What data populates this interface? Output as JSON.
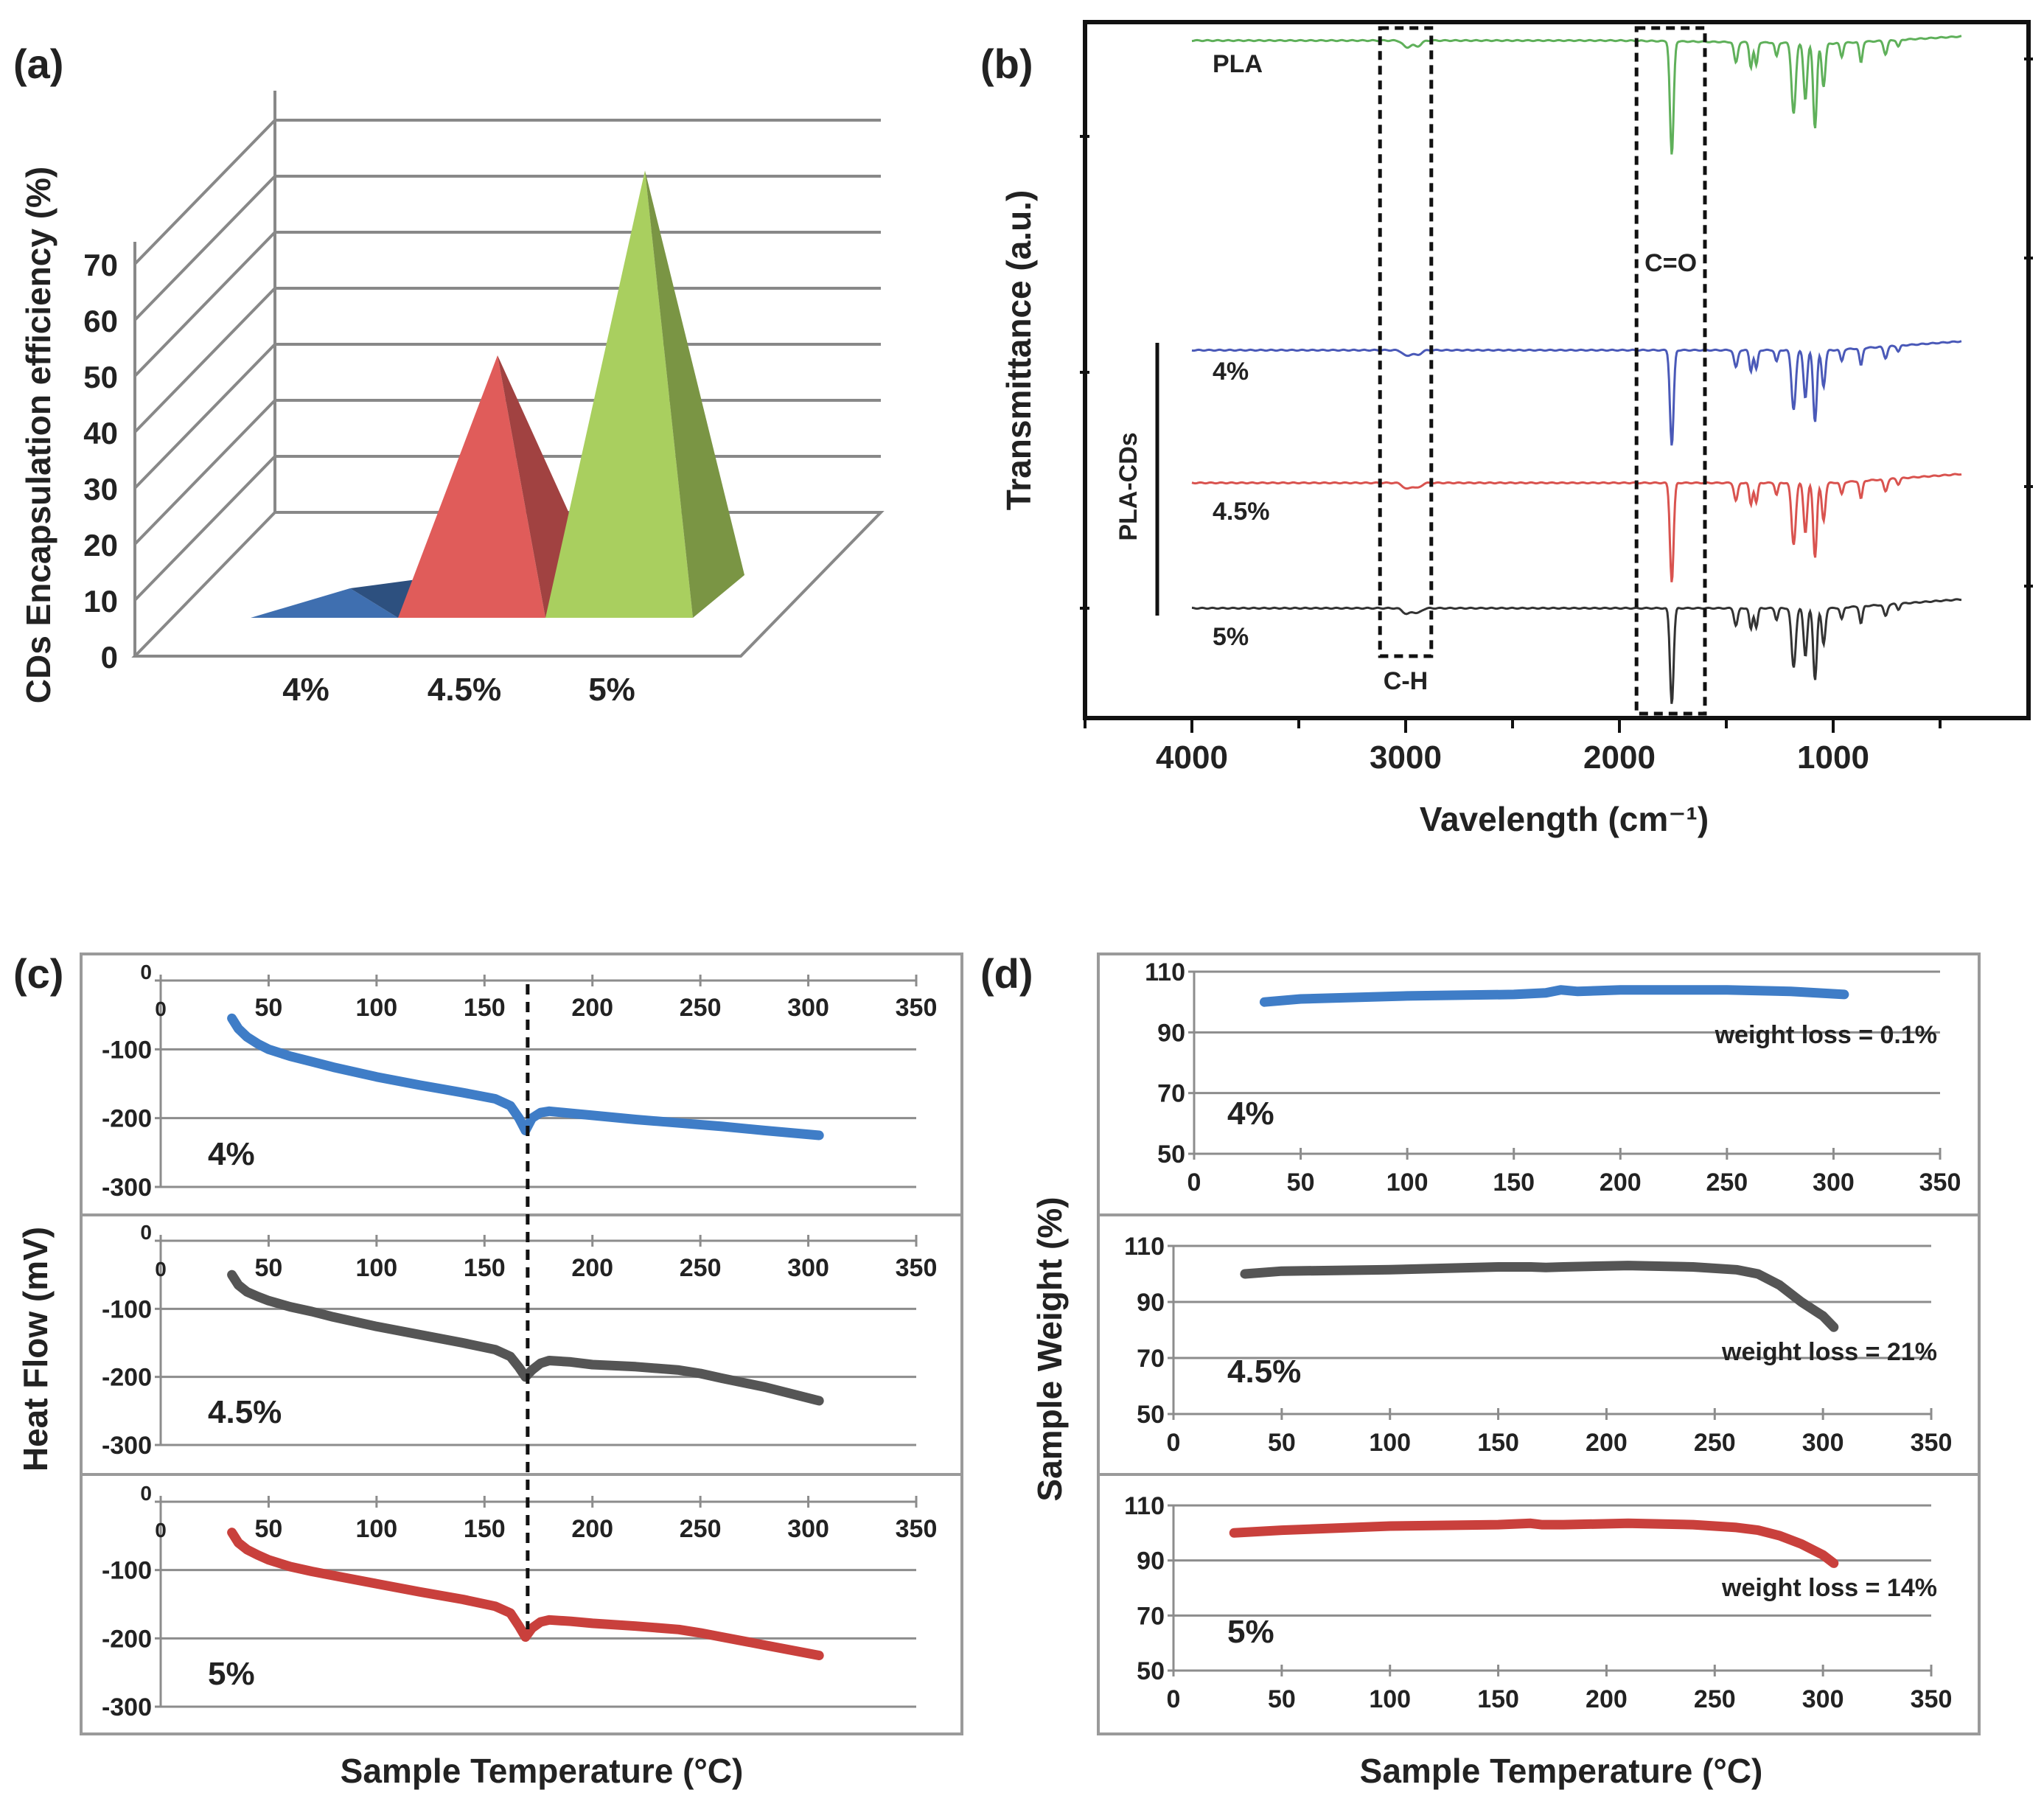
{
  "panels": {
    "a": "(a)",
    "b": "(b)",
    "c": "(c)",
    "d": "(d)"
  },
  "colors": {
    "blue": "#3f7dc7",
    "gray": "#555555",
    "red": "#c9403c",
    "green": "#a4ca5f",
    "ftir_green": "#5fb05a",
    "ftir_blue": "#4a59b8",
    "ftir_red": "#d9534f",
    "ftir_black": "#333333"
  },
  "chart_data": [
    {
      "id": "a",
      "type": "bar",
      "title": "",
      "ylabel": "CDs Encapsulation efficiency (%)",
      "xlabel": "",
      "categories": [
        "4%",
        "4.5%",
        "5%"
      ],
      "values": [
        1,
        35,
        68
      ],
      "ylim": [
        0,
        70
      ],
      "yticks": [
        0,
        10,
        20,
        30,
        40,
        50,
        60,
        70
      ],
      "colors": [
        "#3f6fb0",
        "#e05c5a",
        "#a9cf5f"
      ]
    },
    {
      "id": "b",
      "type": "line",
      "xlabel": "Vavelength (cm⁻¹)",
      "ylabel": "Transmittance (a.u.)",
      "xlim": [
        4500,
        0
      ],
      "xticks": [
        4000,
        3000,
        2000,
        1000
      ],
      "group_label": "PLA-CDs",
      "series": [
        {
          "name": "PLA",
          "color": "#5fb05a"
        },
        {
          "name": "4%",
          "color": "#4a59b8"
        },
        {
          "name": "4.5%",
          "color": "#d9534f"
        },
        {
          "name": "5%",
          "color": "#333333"
        }
      ],
      "annotations": [
        {
          "label": "C-H",
          "range": [
            3120,
            2880
          ]
        },
        {
          "label": "C=O",
          "range": [
            1920,
            1600
          ]
        }
      ]
    },
    {
      "id": "c",
      "type": "line",
      "xlabel": "Sample Temperature (°C)",
      "ylabel": "Heat Flow (mV)",
      "xlim": [
        0,
        350
      ],
      "ylim": [
        -300,
        0
      ],
      "xticks": [
        0,
        50,
        100,
        150,
        200,
        250,
        300,
        350
      ],
      "yticks": [
        0,
        -100,
        -200,
        -300
      ],
      "tick_labels_x": [
        "0",
        "50",
        "100",
        "150",
        "200",
        "250",
        "300",
        "350"
      ],
      "tick_labels_y": [
        "0",
        "-100",
        "-200",
        "-300"
      ],
      "dashed_line_x": 170,
      "series": [
        {
          "name": "4%",
          "color": "#3f7dc7",
          "x": [
            33,
            36,
            40,
            45,
            50,
            60,
            70,
            80,
            100,
            120,
            140,
            155,
            162,
            166,
            169,
            172,
            176,
            180,
            190,
            200,
            220,
            240,
            260,
            280,
            305
          ],
          "y": [
            -55,
            -70,
            -82,
            -92,
            -100,
            -110,
            -118,
            -126,
            -140,
            -152,
            -163,
            -172,
            -182,
            -200,
            -218,
            -200,
            -192,
            -190,
            -193,
            -196,
            -202,
            -207,
            -212,
            -218,
            -225
          ]
        },
        {
          "name": "4.5%",
          "color": "#555555",
          "x": [
            33,
            36,
            40,
            45,
            50,
            60,
            70,
            80,
            100,
            120,
            140,
            155,
            162,
            166,
            169,
            172,
            176,
            180,
            190,
            200,
            220,
            240,
            250,
            260,
            280,
            305
          ],
          "y": [
            -50,
            -65,
            -75,
            -82,
            -88,
            -97,
            -104,
            -112,
            -126,
            -138,
            -150,
            -160,
            -170,
            -186,
            -200,
            -190,
            -180,
            -176,
            -178,
            -182,
            -185,
            -190,
            -195,
            -202,
            -215,
            -235
          ]
        },
        {
          "name": "5%",
          "color": "#c9403c",
          "x": [
            33,
            36,
            40,
            45,
            50,
            60,
            70,
            80,
            100,
            120,
            140,
            155,
            162,
            166,
            169,
            172,
            176,
            180,
            190,
            200,
            220,
            240,
            250,
            260,
            280,
            305
          ],
          "y": [
            -45,
            -60,
            -70,
            -78,
            -85,
            -95,
            -102,
            -108,
            -120,
            -132,
            -143,
            -153,
            -163,
            -182,
            -198,
            -185,
            -176,
            -173,
            -175,
            -178,
            -182,
            -187,
            -192,
            -198,
            -210,
            -225
          ]
        }
      ]
    },
    {
      "id": "d",
      "type": "line",
      "xlabel": "Sample Temperature (°C)",
      "ylabel": "Sample Weight (%)",
      "xlim": [
        0,
        350
      ],
      "ylim": [
        50,
        110
      ],
      "xticks": [
        0,
        50,
        100,
        150,
        200,
        250,
        300,
        350
      ],
      "yticks": [
        50,
        70,
        90,
        110
      ],
      "tick_labels_x": [
        "0",
        "50",
        "100",
        "150",
        "200",
        "250",
        "300",
        "350"
      ],
      "tick_labels_y": [
        "50",
        "70",
        "90",
        "110"
      ],
      "series": [
        {
          "name": "4%",
          "annotation": "weight loss = 0.1%",
          "color": "#3f7dc7",
          "x": [
            33,
            50,
            100,
            150,
            165,
            172,
            180,
            200,
            250,
            280,
            305
          ],
          "y": [
            100,
            101,
            102,
            102.5,
            103,
            104,
            103.5,
            104,
            104,
            103.5,
            102.5
          ]
        },
        {
          "name": "4.5%",
          "annotation": "weight loss = 21%",
          "color": "#555555",
          "x": [
            33,
            50,
            100,
            150,
            165,
            172,
            180,
            210,
            240,
            260,
            270,
            280,
            290,
            300,
            305
          ],
          "y": [
            100,
            101,
            101.5,
            102.5,
            102.5,
            102.3,
            102.5,
            103,
            102.5,
            101.5,
            100,
            96,
            90,
            85,
            81
          ]
        },
        {
          "name": "5%",
          "annotation": "weight loss = 14%",
          "color": "#c9403c",
          "x": [
            28,
            50,
            100,
            150,
            165,
            170,
            180,
            210,
            240,
            260,
            270,
            280,
            290,
            300,
            305
          ],
          "y": [
            100,
            101,
            102.5,
            103,
            103.5,
            103,
            103,
            103.5,
            103,
            102,
            101,
            99,
            96,
            92,
            89
          ]
        }
      ]
    }
  ]
}
